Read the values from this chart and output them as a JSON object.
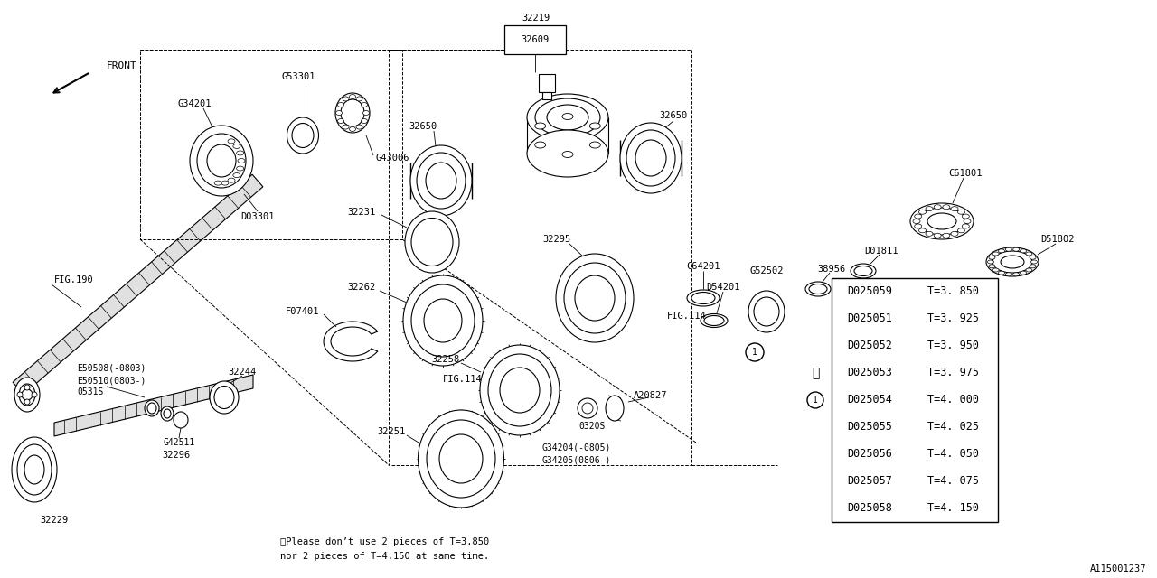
{
  "bg_color": "#ffffff",
  "lc": "#000000",
  "diagram_id": "A115001237",
  "table_rows": [
    [
      "D025059",
      "T=3. 850"
    ],
    [
      "D025051",
      "T=3. 925"
    ],
    [
      "D025052",
      "T=3. 950"
    ],
    [
      "D025053",
      "T=3. 975"
    ],
    [
      "D025054",
      "T=4. 000"
    ],
    [
      "D025055",
      "T=4. 025"
    ],
    [
      "D025056",
      "T=4. 050"
    ],
    [
      "D025057",
      "T=4. 075"
    ],
    [
      "D025058",
      "T=4. 150"
    ]
  ],
  "asterisk_row": 3,
  "circle1_row": 4,
  "footnote_line1": "※Please don’t use 2 pieces of T=3.850",
  "footnote_line2": "nor 2 pieces of T=4.150 at same time."
}
